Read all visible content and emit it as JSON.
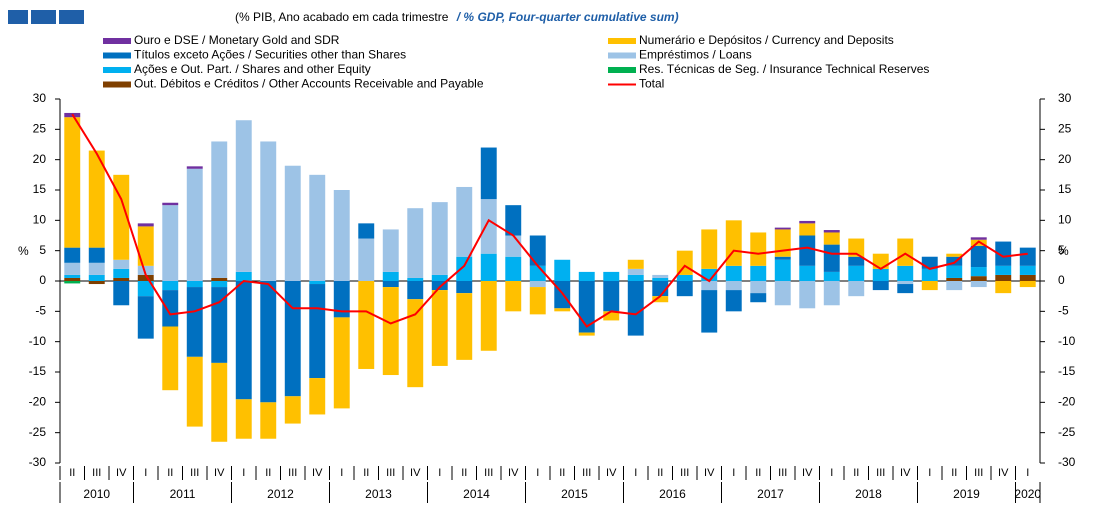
{
  "chart_data": {
    "type": "bar",
    "subtitle": "(% PIB, Ano acabado em cada trimestre",
    "subtitle_en": "/ % GDP, Four-quarter cumulative sum)",
    "y_label": "%",
    "ylim": [
      -30,
      30
    ],
    "yticks": [
      -30,
      -25,
      -20,
      -15,
      -10,
      -5,
      0,
      5,
      10,
      15,
      20,
      25,
      30
    ],
    "categories": [
      "II",
      "III",
      "IV",
      "I",
      "II",
      "III",
      "IV",
      "I",
      "II",
      "III",
      "IV",
      "I",
      "II",
      "III",
      "IV",
      "I",
      "II",
      "III",
      "IV",
      "I",
      "II",
      "III",
      "IV",
      "I",
      "II",
      "III",
      "IV",
      "I",
      "II",
      "III",
      "IV",
      "I",
      "II",
      "III",
      "IV",
      "I",
      "II",
      "III",
      "IV",
      "I"
    ],
    "years": [
      "2010",
      "2011",
      "2012",
      "2013",
      "2014",
      "2015",
      "2016",
      "2017",
      "2018",
      "2019",
      "2020"
    ],
    "series": [
      {
        "name": "Ouro e DSE / Monetary Gold and SDR",
        "color": "#7030a0",
        "values": [
          0.7,
          0,
          0,
          0.5,
          0.4,
          0.4,
          0,
          0,
          0,
          0,
          0,
          0,
          0,
          0,
          0,
          0,
          0,
          0,
          0,
          0,
          0,
          0,
          0,
          0,
          0,
          0,
          0,
          0,
          0,
          0.3,
          0.4,
          0.4,
          0,
          0,
          0,
          0,
          0,
          0.4,
          0,
          0
        ]
      },
      {
        "name": "Numerário e Depósitos / Currency and Deposits",
        "color": "#ffc000",
        "values": [
          21.5,
          16,
          14,
          6.5,
          -10.5,
          -11.5,
          -13,
          -6.5,
          -6,
          -4.5,
          -6,
          -15,
          -14.5,
          -14.5,
          -14.5,
          -12.5,
          -11,
          -11.5,
          -5,
          -4.5,
          -0.5,
          -0.5,
          -1.5,
          1.5,
          -1,
          4,
          6.5,
          7.5,
          5.5,
          4.5,
          2,
          2,
          3,
          2.5,
          4.5,
          -1.5,
          0.5,
          1,
          -2,
          -1
        ]
      },
      {
        "name": "Títulos exceto Ações / Securities other than Shares",
        "color": "#0070c0",
        "values": [
          2.5,
          2.5,
          -4,
          -7,
          -6,
          -11.5,
          -12.5,
          -19.5,
          -20,
          -19,
          -15.5,
          -6,
          2.5,
          -1,
          -3,
          -1.5,
          -2,
          8.5,
          5,
          5,
          -4.5,
          -8.5,
          -5,
          -9,
          -2.5,
          -2.5,
          -7,
          -3.5,
          -1.5,
          0.5,
          5,
          4.5,
          1.5,
          -1.5,
          -1.5,
          2,
          1.5,
          3.5,
          4,
          3
        ]
      },
      {
        "name": "Empréstimos / Loans",
        "color": "#9dc3e6",
        "values": [
          2,
          2,
          1.5,
          1.5,
          12.5,
          18.5,
          22.5,
          25,
          23,
          19,
          17.5,
          15,
          7,
          7,
          11.5,
          12,
          11.5,
          9,
          3.5,
          -1,
          0,
          0,
          0,
          1,
          0.5,
          0,
          -1.5,
          -1.5,
          -2,
          -4,
          -4.5,
          -4,
          -2.5,
          0,
          -0.5,
          0,
          -1.5,
          -1,
          0,
          0
        ]
      },
      {
        "name": "Ações e Out. Part. / Shares and other Equity",
        "color": "#00b0f0",
        "values": [
          0.5,
          1,
          1.5,
          -2.5,
          -1.5,
          -1,
          -1,
          1.5,
          0,
          0,
          -0.5,
          0,
          0,
          1.5,
          0.5,
          1,
          4,
          4.5,
          4,
          2.5,
          3.5,
          1.5,
          1.5,
          1,
          0.5,
          1,
          2,
          2.5,
          2.5,
          3.5,
          2.5,
          1.5,
          2.5,
          2,
          2.5,
          2,
          2,
          1.5,
          1.5,
          1.5
        ]
      },
      {
        "name": "Res. Técnicas de Seg. / Insurance Technical Reserves",
        "color": "#00b050",
        "values": [
          -0.4,
          0,
          0,
          0,
          0,
          0,
          0,
          0,
          0,
          0,
          0,
          0,
          0,
          0,
          0,
          0,
          0,
          0,
          0,
          0,
          0,
          0,
          0,
          0,
          0,
          0,
          0,
          0,
          0,
          0,
          0,
          0,
          0,
          0,
          0,
          0,
          0,
          0,
          0,
          0
        ]
      },
      {
        "name": "Out. Débitos e Créditos / Other Accounts Receivable and Payable",
        "color": "#7f3f00",
        "values": [
          0.5,
          -0.5,
          0.5,
          1,
          0,
          0,
          0.5,
          0,
          0,
          0,
          0,
          0,
          0,
          0,
          0,
          0,
          0,
          0,
          0,
          0,
          0,
          0,
          0,
          0,
          0,
          0,
          0,
          0,
          0,
          0,
          0,
          0,
          0,
          0,
          0,
          0,
          0.5,
          0.8,
          1,
          1
        ]
      },
      {
        "name": "Total",
        "color": "#ff0000",
        "type": "line",
        "values": [
          27.5,
          21,
          13.5,
          1,
          -5.5,
          -5,
          -3.5,
          0,
          -0.5,
          -4.5,
          -4.5,
          -5,
          -5,
          -7,
          -5.5,
          -1,
          2.5,
          10,
          7.5,
          2.5,
          -2,
          -7.5,
          -5,
          -5.5,
          -2.5,
          2.5,
          0,
          5,
          4.5,
          5,
          5.5,
          4.5,
          4.5,
          2,
          4.5,
          2,
          3,
          6.5,
          4,
          4.5
        ]
      }
    ]
  }
}
